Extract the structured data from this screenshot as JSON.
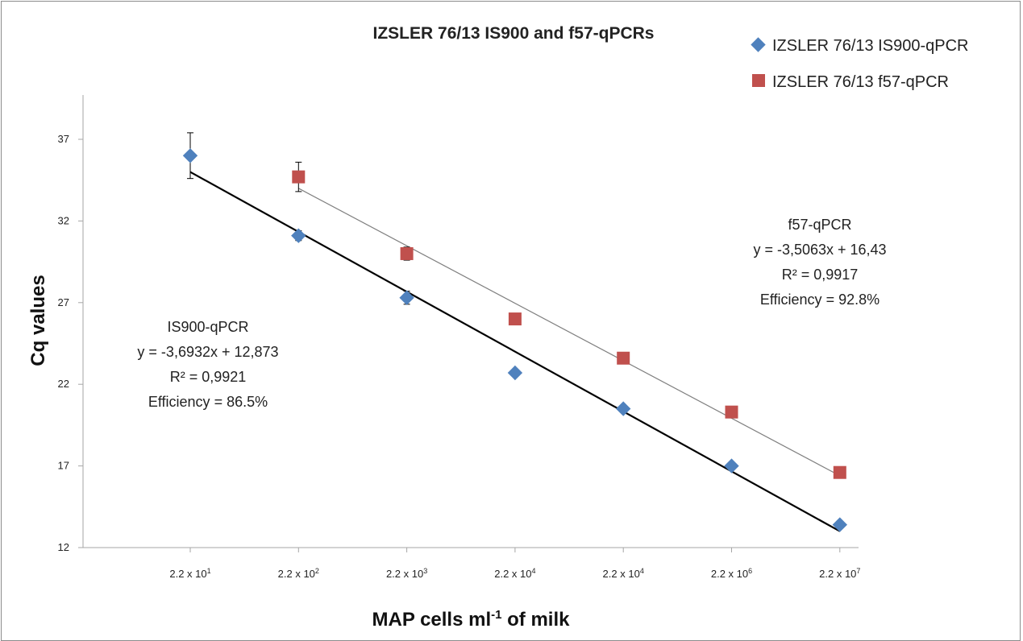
{
  "chart_data": {
    "type": "scatter",
    "title": "IZSLER 76/13 IS900 and f57-qPCRs",
    "ylabel": "Cq values",
    "xlabel": {
      "base": "MAP cells ml",
      "sup": "-1",
      "tail": " of milk"
    },
    "ylim": [
      12,
      39
    ],
    "yticks": [
      12,
      17,
      22,
      27,
      32,
      37
    ],
    "categories": [
      {
        "base": "2.2 x 10",
        "exp": "1"
      },
      {
        "base": "2.2 x 10",
        "exp": "2"
      },
      {
        "base": "2.2 x 10",
        "exp": "3"
      },
      {
        "base": "2.2 x 10",
        "exp": "4"
      },
      {
        "base": "2.2 x 10",
        "exp": "4"
      },
      {
        "base": "2.2 x 10",
        "exp": "6"
      },
      {
        "base": "2.2 x 10",
        "exp": "7"
      }
    ],
    "legend_position": "top-right",
    "series": [
      {
        "name": "IZSLER 76/13 IS900-qPCR",
        "marker": "diamond",
        "color": "#4f81bd",
        "x": [
          1,
          2,
          3,
          4,
          5,
          6,
          7
        ],
        "values": [
          36.0,
          31.1,
          27.3,
          22.7,
          20.5,
          17.0,
          13.4
        ],
        "errors": [
          1.4,
          0.3,
          0.4,
          0.2,
          0.1,
          0.1,
          0.1
        ],
        "trend": {
          "color": "#000000",
          "width": 2.2,
          "y_start": 35.0,
          "y_end": 13.0
        }
      },
      {
        "name": "IZSLER 76/13 f57-qPCR",
        "marker": "square",
        "color": "#c0504d",
        "x": [
          2,
          3,
          4,
          5,
          6,
          7
        ],
        "values": [
          34.7,
          30.0,
          26.0,
          23.6,
          20.3,
          16.6
        ],
        "errors": [
          0.9,
          0.4,
          0.1,
          0.1,
          0.1,
          0.1
        ],
        "trend": {
          "color": "#7f7f7f",
          "width": 1.2,
          "y_start": 34.0,
          "y_end": 16.4
        }
      }
    ],
    "annotations": [
      {
        "id": "is900",
        "lines": [
          "IS900-qPCR",
          "y = -3,6932x + 12,873",
          "R² = 0,9921",
          "Efficiency = 86.5%"
        ]
      },
      {
        "id": "f57",
        "lines": [
          "f57-qPCR",
          "y = -3,5063x + 16,43",
          "R² = 0,9917",
          "Efficiency = 92.8%"
        ]
      }
    ]
  }
}
